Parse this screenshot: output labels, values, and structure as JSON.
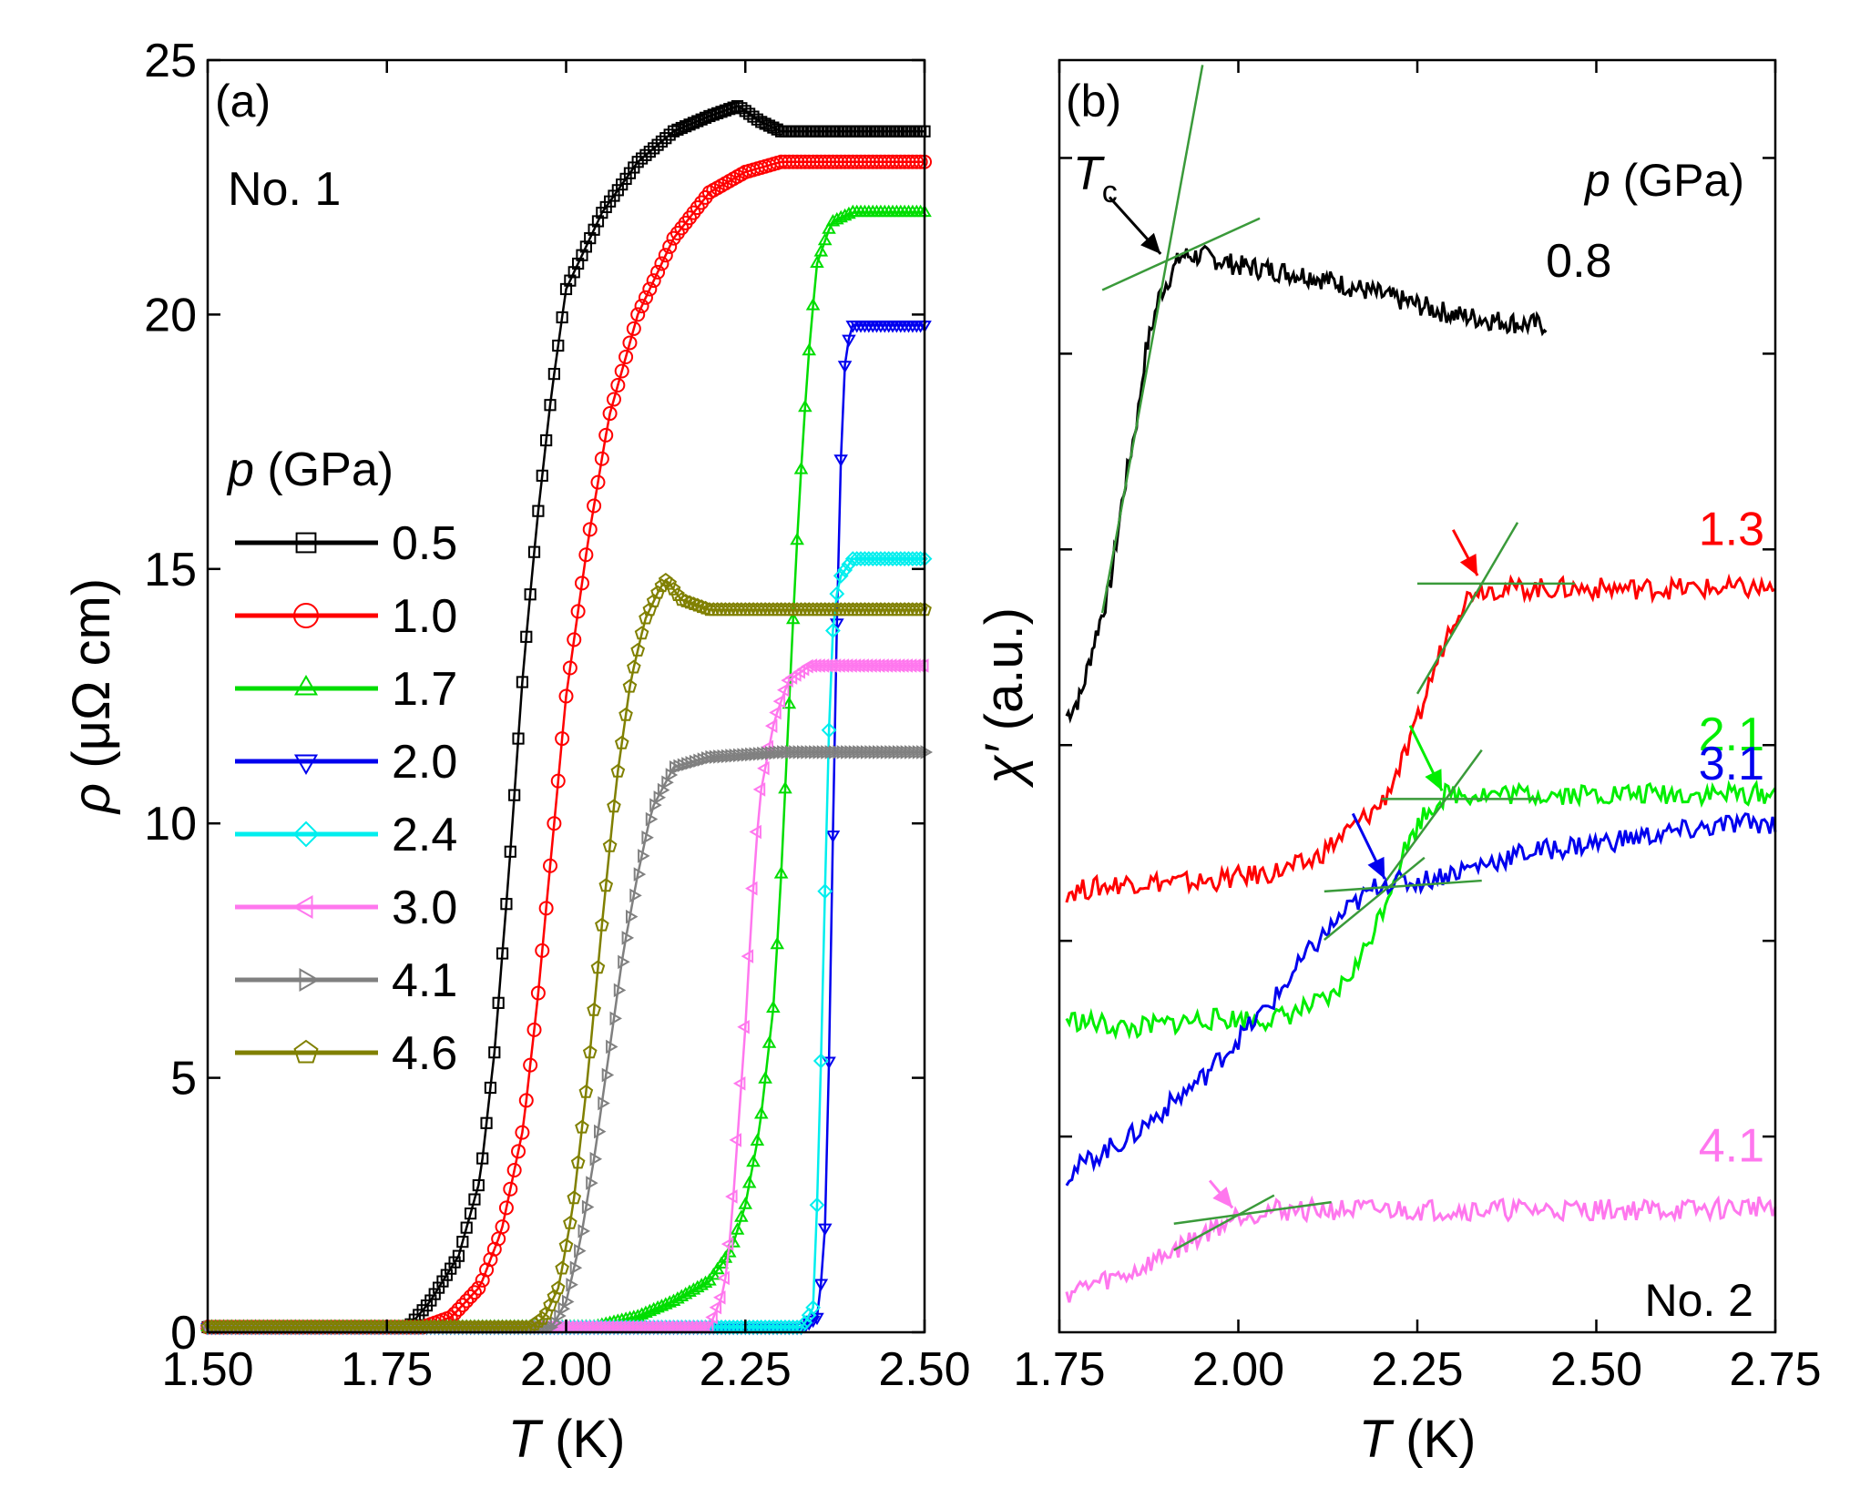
{
  "chart_data": [
    {
      "panel": "a",
      "type": "scatter",
      "panel_label": "(a)",
      "sample_label": "No. 1",
      "xlabel_italic": "T",
      "xlabel_unit": " (K)",
      "ylabel_italic": "ρ",
      "ylabel_unit": " (μΩ cm)",
      "xlim": [
        1.5,
        2.5
      ],
      "ylim": [
        0,
        25
      ],
      "xticks": [
        1.5,
        1.75,
        2.0,
        2.25,
        2.5
      ],
      "xtick_labels": [
        "1.50",
        "1.75",
        "2.00",
        "2.25",
        "2.50"
      ],
      "yticks": [
        0,
        5,
        10,
        15,
        20,
        25
      ],
      "ytick_labels": [
        "0",
        "5",
        "10",
        "15",
        "20",
        "25"
      ],
      "legend_title_italic": "p",
      "legend_title_unit": " (GPa)",
      "legend_position": "center-left",
      "series": [
        {
          "name": "0.5",
          "color": "#000000",
          "marker": "square",
          "points": [
            [
              1.5,
              0.1
            ],
            [
              1.78,
              0.1
            ],
            [
              1.81,
              0.6
            ],
            [
              1.85,
              1.5
            ],
            [
              1.88,
              3
            ],
            [
              1.9,
              5.5
            ],
            [
              1.92,
              9
            ],
            [
              1.94,
              13
            ],
            [
              1.96,
              16
            ],
            [
              1.98,
              18.5
            ],
            [
              2.0,
              20.5
            ],
            [
              2.05,
              22
            ],
            [
              2.1,
              23
            ],
            [
              2.15,
              23.6
            ],
            [
              2.2,
              23.9
            ],
            [
              2.24,
              24.1
            ],
            [
              2.27,
              23.8
            ],
            [
              2.3,
              23.6
            ],
            [
              2.4,
              23.6
            ],
            [
              2.5,
              23.6
            ]
          ]
        },
        {
          "name": "1.0",
          "color": "#ff0000",
          "marker": "circle",
          "points": [
            [
              1.5,
              0.1
            ],
            [
              1.8,
              0.1
            ],
            [
              1.84,
              0.3
            ],
            [
              1.88,
              0.9
            ],
            [
              1.91,
              2
            ],
            [
              1.94,
              4
            ],
            [
              1.96,
              6.5
            ],
            [
              1.98,
              9.5
            ],
            [
              2.0,
              12.5
            ],
            [
              2.03,
              15.5
            ],
            [
              2.06,
              18
            ],
            [
              2.1,
              20
            ],
            [
              2.15,
              21.5
            ],
            [
              2.2,
              22.4
            ],
            [
              2.25,
              22.8
            ],
            [
              2.3,
              23.0
            ],
            [
              2.4,
              23.0
            ],
            [
              2.5,
              23.0
            ]
          ]
        },
        {
          "name": "1.7",
          "color": "#00dd00",
          "marker": "triangle-up",
          "points": [
            [
              1.5,
              0.1
            ],
            [
              2.04,
              0.1
            ],
            [
              2.1,
              0.3
            ],
            [
              2.15,
              0.6
            ],
            [
              2.2,
              1.0
            ],
            [
              2.23,
              1.6
            ],
            [
              2.25,
              2.5
            ],
            [
              2.27,
              4
            ],
            [
              2.29,
              6.5
            ],
            [
              2.3,
              9
            ],
            [
              2.31,
              12
            ],
            [
              2.32,
              15
            ],
            [
              2.33,
              17.5
            ],
            [
              2.34,
              19.5
            ],
            [
              2.35,
              21
            ],
            [
              2.37,
              21.8
            ],
            [
              2.4,
              22.0
            ],
            [
              2.5,
              22.0
            ]
          ]
        },
        {
          "name": "2.0",
          "color": "#0000ee",
          "marker": "triangle-down",
          "points": [
            [
              1.5,
              0.1
            ],
            [
              2.33,
              0.1
            ],
            [
              2.35,
              0.3
            ],
            [
              2.36,
              1.5
            ],
            [
              2.365,
              4
            ],
            [
              2.37,
              8
            ],
            [
              2.375,
              12
            ],
            [
              2.38,
              15.5
            ],
            [
              2.385,
              18
            ],
            [
              2.39,
              19.3
            ],
            [
              2.4,
              19.8
            ],
            [
              2.5,
              19.8
            ]
          ]
        },
        {
          "name": "2.4",
          "color": "#00eeee",
          "marker": "diamond",
          "points": [
            [
              1.5,
              0.1
            ],
            [
              2.33,
              0.1
            ],
            [
              2.345,
              0.5
            ],
            [
              2.35,
              2.5
            ],
            [
              2.355,
              5
            ],
            [
              2.36,
              8
            ],
            [
              2.365,
              11
            ],
            [
              2.37,
              13.5
            ],
            [
              2.38,
              14.8
            ],
            [
              2.4,
              15.2
            ],
            [
              2.5,
              15.2
            ]
          ]
        },
        {
          "name": "3.0",
          "color": "#ff77ee",
          "marker": "triangle-left",
          "points": [
            [
              1.5,
              0.1
            ],
            [
              2.2,
              0.1
            ],
            [
              2.22,
              0.8
            ],
            [
              2.23,
              2
            ],
            [
              2.24,
              4
            ],
            [
              2.25,
              6
            ],
            [
              2.26,
              8.5
            ],
            [
              2.27,
              10.5
            ],
            [
              2.29,
              12
            ],
            [
              2.31,
              12.8
            ],
            [
              2.34,
              13.1
            ],
            [
              2.4,
              13.1
            ],
            [
              2.5,
              13.1
            ]
          ]
        },
        {
          "name": "4.1",
          "color": "#808080",
          "marker": "triangle-right",
          "points": [
            [
              1.5,
              0.1
            ],
            [
              1.98,
              0.1
            ],
            [
              2.0,
              0.6
            ],
            [
              2.02,
              1.8
            ],
            [
              2.04,
              3.5
            ],
            [
              2.06,
              5.5
            ],
            [
              2.08,
              7.5
            ],
            [
              2.1,
              9
            ],
            [
              2.12,
              10.3
            ],
            [
              2.15,
              11.1
            ],
            [
              2.2,
              11.3
            ],
            [
              2.3,
              11.4
            ],
            [
              2.4,
              11.4
            ],
            [
              2.5,
              11.4
            ]
          ]
        },
        {
          "name": "4.6",
          "color": "#808000",
          "marker": "pentagon",
          "points": [
            [
              1.5,
              0.1
            ],
            [
              1.95,
              0.1
            ],
            [
              1.97,
              0.3
            ],
            [
              1.99,
              0.9
            ],
            [
              2.01,
              2.5
            ],
            [
              2.03,
              5
            ],
            [
              2.05,
              8
            ],
            [
              2.07,
              10.8
            ],
            [
              2.09,
              12.8
            ],
            [
              2.11,
              14
            ],
            [
              2.13,
              14.6
            ],
            [
              2.14,
              14.8
            ],
            [
              2.16,
              14.4
            ],
            [
              2.2,
              14.2
            ],
            [
              2.3,
              14.2
            ],
            [
              2.4,
              14.2
            ],
            [
              2.5,
              14.2
            ]
          ]
        }
      ]
    },
    {
      "panel": "b",
      "type": "line",
      "panel_label": "(b)",
      "sample_label": "No. 2",
      "xlabel_italic": "T",
      "xlabel_unit": " (K)",
      "ylabel_italic": "χ′",
      "ylabel_unit": " (a.u.)",
      "xlim": [
        1.75,
        2.75
      ],
      "ylim": [
        0,
        13
      ],
      "xticks": [
        1.75,
        2.0,
        2.25,
        2.5,
        2.75
      ],
      "xtick_labels": [
        "1.75",
        "2.00",
        "2.25",
        "2.50",
        "2.75"
      ],
      "pressure_title_italic": "p",
      "pressure_title_unit": " (GPa)",
      "tc_label_main": "T",
      "tc_label_sub": "c",
      "series": [
        {
          "name": "0.8",
          "color": "#000000",
          "points": [
            [
              1.76,
              6.3
            ],
            [
              1.78,
              6.5
            ],
            [
              1.8,
              7.1
            ],
            [
              1.82,
              7.6
            ],
            [
              1.83,
              8.1
            ],
            [
              1.84,
              8.6
            ],
            [
              1.86,
              9.4
            ],
            [
              1.87,
              10.0
            ],
            [
              1.89,
              10.6
            ],
            [
              1.92,
              11.0
            ],
            [
              1.95,
              11.0
            ],
            [
              2.0,
              10.9
            ],
            [
              2.1,
              10.8
            ],
            [
              2.2,
              10.6
            ],
            [
              2.3,
              10.4
            ],
            [
              2.4,
              10.3
            ],
            [
              2.43,
              10.3
            ]
          ],
          "tc": 1.9,
          "tc_value": 10.95,
          "arrow_from": [
            1.82,
            11.6
          ]
        },
        {
          "name": "1.3",
          "color": "#ff0000",
          "points": [
            [
              1.76,
              4.5
            ],
            [
              1.85,
              4.6
            ],
            [
              1.95,
              4.6
            ],
            [
              2.05,
              4.7
            ],
            [
              2.1,
              4.8
            ],
            [
              2.15,
              5.1
            ],
            [
              2.2,
              5.4
            ],
            [
              2.24,
              6.0
            ],
            [
              2.27,
              6.7
            ],
            [
              2.3,
              7.3
            ],
            [
              2.33,
              7.6
            ],
            [
              2.36,
              7.6
            ],
            [
              2.45,
              7.6
            ],
            [
              2.6,
              7.6
            ],
            [
              2.75,
              7.6
            ]
          ],
          "tc": 2.34,
          "tc_value": 7.65,
          "arrow_from": [
            2.3,
            8.2
          ]
        },
        {
          "name": "2.1",
          "color": "#00ee00",
          "points": [
            [
              1.76,
              3.2
            ],
            [
              1.85,
              3.1
            ],
            [
              1.95,
              3.2
            ],
            [
              2.05,
              3.2
            ],
            [
              2.13,
              3.4
            ],
            [
              2.17,
              3.8
            ],
            [
              2.2,
              4.3
            ],
            [
              2.23,
              4.9
            ],
            [
              2.26,
              5.3
            ],
            [
              2.29,
              5.5
            ],
            [
              2.32,
              5.5
            ],
            [
              2.45,
              5.5
            ],
            [
              2.6,
              5.5
            ],
            [
              2.75,
              5.5
            ]
          ],
          "tc": 2.29,
          "tc_value": 5.45,
          "arrow_from": [
            2.24,
            6.2
          ]
        },
        {
          "name": "3.1",
          "color": "#0000ee",
          "points": [
            [
              1.76,
              1.6
            ],
            [
              1.8,
              1.8
            ],
            [
              1.85,
              2.0
            ],
            [
              1.9,
              2.3
            ],
            [
              1.95,
              2.6
            ],
            [
              2.0,
              3.0
            ],
            [
              2.05,
              3.4
            ],
            [
              2.1,
              3.9
            ],
            [
              2.15,
              4.3
            ],
            [
              2.2,
              4.6
            ],
            [
              2.25,
              4.6
            ],
            [
              2.3,
              4.7
            ],
            [
              2.35,
              4.8
            ],
            [
              2.4,
              4.9
            ],
            [
              2.5,
              5.0
            ],
            [
              2.6,
              5.1
            ],
            [
              2.7,
              5.2
            ],
            [
              2.75,
              5.2
            ]
          ],
          "tc": 2.21,
          "tc_value": 4.55,
          "arrow_from": [
            2.16,
            5.3
          ]
        },
        {
          "name": "4.1",
          "color": "#ff77ee",
          "points": [
            [
              1.76,
              0.4
            ],
            [
              1.8,
              0.5
            ],
            [
              1.85,
              0.6
            ],
            [
              1.9,
              0.8
            ],
            [
              1.95,
              1.0
            ],
            [
              2.0,
              1.2
            ],
            [
              2.05,
              1.25
            ],
            [
              2.1,
              1.25
            ],
            [
              2.2,
              1.25
            ],
            [
              2.35,
              1.25
            ],
            [
              2.5,
              1.25
            ],
            [
              2.65,
              1.25
            ],
            [
              2.75,
              1.3
            ]
          ],
          "tc": 2.0,
          "tc_value": 1.2,
          "arrow_from": [
            1.96,
            1.55
          ]
        }
      ]
    }
  ]
}
